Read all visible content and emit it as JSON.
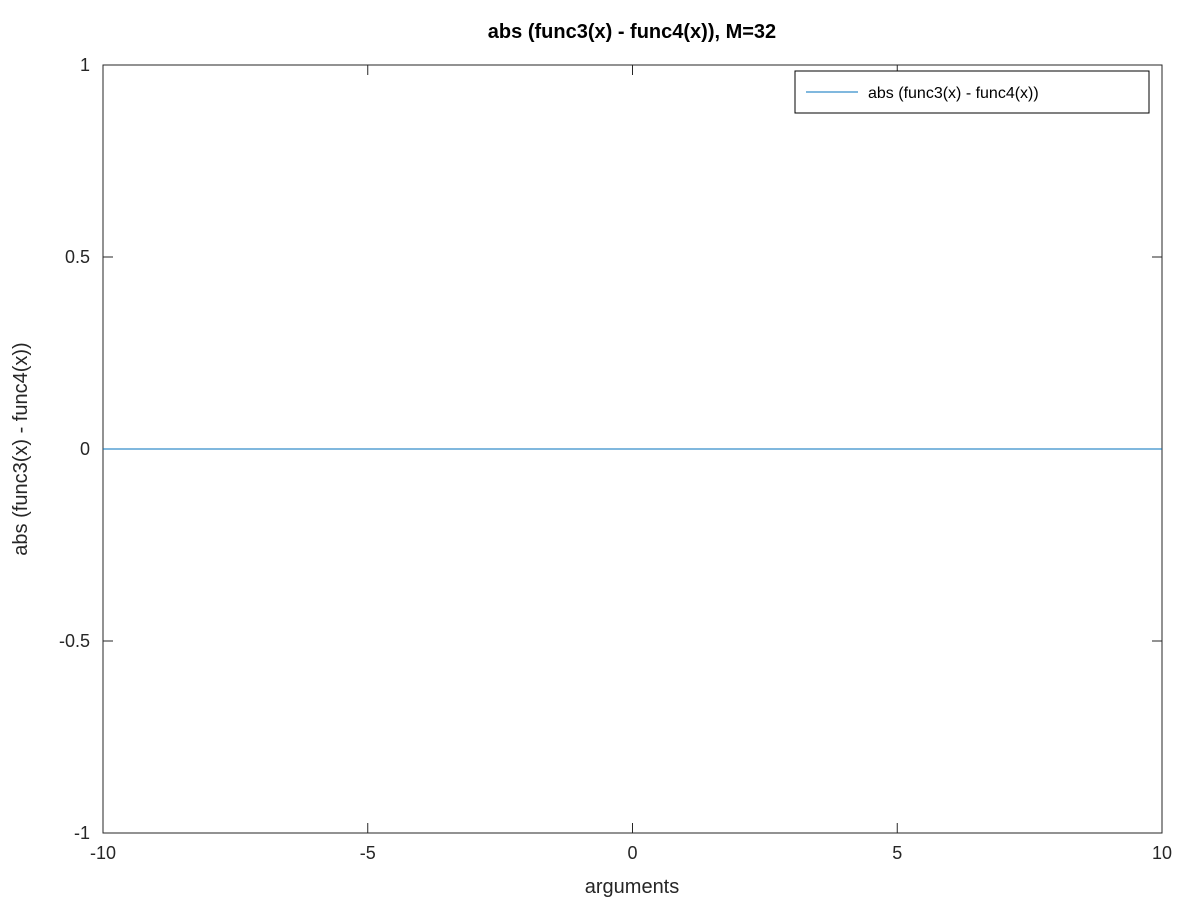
{
  "chart_data": {
    "type": "line",
    "title": "abs (func3(x) - func4(x)), M=32",
    "xlabel": "arguments",
    "ylabel": "abs (func3(x) - func4(x))",
    "xlim": [
      -10,
      10
    ],
    "ylim": [
      -1,
      1
    ],
    "xticks": [
      -10,
      -5,
      0,
      5,
      10
    ],
    "yticks": [
      -1,
      -0.5,
      0,
      0.5,
      1
    ],
    "xtick_labels": [
      "-10",
      "-5",
      "0",
      "5",
      "10"
    ],
    "ytick_labels": [
      "-1",
      "-0.5",
      "0",
      "0.5",
      "1"
    ],
    "grid": false,
    "legend_position": "top-right",
    "series": [
      {
        "name": "abs (func3(x) - func4(x))",
        "color": "#0072bd",
        "x": [
          -10,
          -5,
          0,
          5,
          10
        ],
        "y": [
          0,
          0,
          0,
          0,
          0
        ]
      }
    ]
  }
}
